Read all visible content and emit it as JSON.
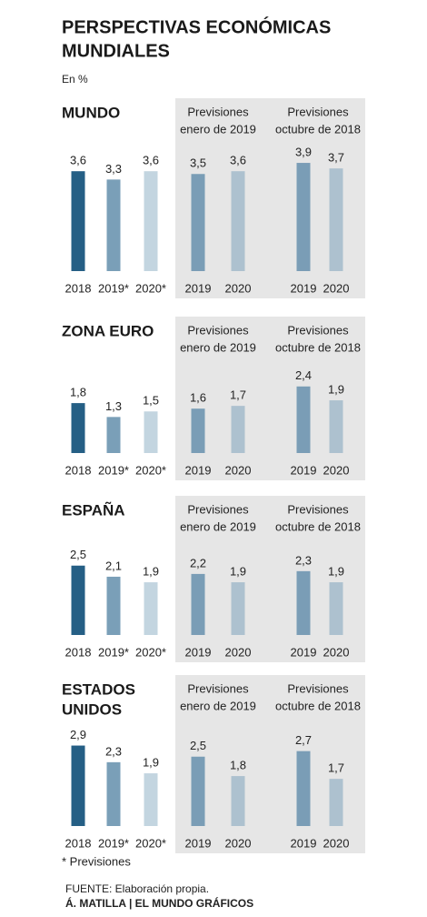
{
  "title": [
    "PERSPECTIVAS ECONÓMICAS",
    "MUNDIALES"
  ],
  "subtitle": "En %",
  "chart_data": [
    {
      "type": "bar",
      "title": [
        "MUNDO"
      ],
      "groups": [
        [
          "Previsiones",
          "enero de 2019"
        ],
        [
          "Previsiones",
          "octubre de 2018"
        ]
      ],
      "categories": [
        "2018",
        "2019*",
        "2020*",
        "2019",
        "2020",
        "2019",
        "2020"
      ],
      "values": [
        3.6,
        3.3,
        3.6,
        3.5,
        3.6,
        3.9,
        3.7
      ],
      "value_labels": [
        "3,6",
        "3,3",
        "3,6",
        "3,5",
        "3,6",
        "3,9",
        "3,7"
      ],
      "colors": [
        "#255f85",
        "#7a9fb8",
        "#c3d5e0",
        "#7a9db6",
        "#adc1cf",
        "#7a9db6",
        "#adc1cf"
      ],
      "ylim": [
        0,
        4
      ]
    },
    {
      "type": "bar",
      "title": [
        "ZONA EURO"
      ],
      "groups": [
        [
          "Previsiones",
          "enero de 2019"
        ],
        [
          "Previsiones",
          "octubre de 2018"
        ]
      ],
      "categories": [
        "2018",
        "2019*",
        "2020*",
        "2019",
        "2020",
        "2019",
        "2020"
      ],
      "values": [
        1.8,
        1.3,
        1.5,
        1.6,
        1.7,
        2.4,
        1.9
      ],
      "value_labels": [
        "1,8",
        "1,3",
        "1,5",
        "1,6",
        "1,7",
        "2,4",
        "1,9"
      ],
      "colors": [
        "#255f85",
        "#7a9fb8",
        "#c3d5e0",
        "#7a9db6",
        "#adc1cf",
        "#7a9db6",
        "#adc1cf"
      ],
      "ylim": [
        0,
        4
      ]
    },
    {
      "type": "bar",
      "title": [
        "ESPAÑA"
      ],
      "groups": [
        [
          "Previsiones",
          "enero de 2019"
        ],
        [
          "Previsiones",
          "octubre de 2018"
        ]
      ],
      "categories": [
        "2018",
        "2019*",
        "2020*",
        "2019",
        "2020",
        "2019",
        "2020"
      ],
      "values": [
        2.5,
        2.1,
        1.9,
        2.2,
        1.9,
        2.3,
        1.9
      ],
      "value_labels": [
        "2,5",
        "2,1",
        "1,9",
        "2,2",
        "1,9",
        "2,3",
        "1,9"
      ],
      "colors": [
        "#255f85",
        "#7a9fb8",
        "#c3d5e0",
        "#7a9db6",
        "#adc1cf",
        "#7a9db6",
        "#adc1cf"
      ],
      "ylim": [
        0,
        4
      ]
    },
    {
      "type": "bar",
      "title": [
        "ESTADOS",
        "UNIDOS"
      ],
      "groups": [
        [
          "Previsiones",
          "enero de 2019"
        ],
        [
          "Previsiones",
          "octubre de 2018"
        ]
      ],
      "categories": [
        "2018",
        "2019*",
        "2020*",
        "2019",
        "2020",
        "2019",
        "2020"
      ],
      "values": [
        2.9,
        2.3,
        1.9,
        2.5,
        1.8,
        2.7,
        1.7
      ],
      "value_labels": [
        "2,9",
        "2,3",
        "1,9",
        "2,5",
        "1,8",
        "2,7",
        "1,7"
      ],
      "colors": [
        "#255f85",
        "#7a9fb8",
        "#c3d5e0",
        "#7a9db6",
        "#adc1cf",
        "#7a9db6",
        "#adc1cf"
      ],
      "ylim": [
        0,
        4
      ]
    }
  ],
  "note": "* Previsiones",
  "source": "FUENTE: Elaboración propia.",
  "credit": "Á. MATILLA | EL MUNDO GRÁFICOS"
}
